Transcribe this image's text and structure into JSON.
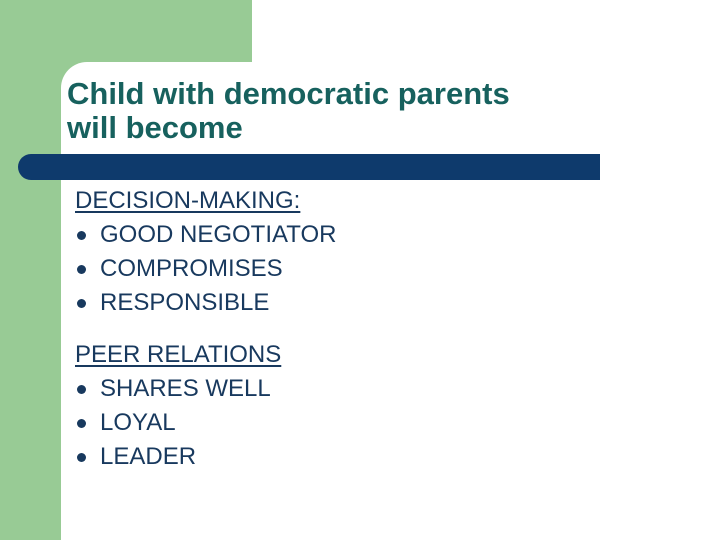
{
  "slide": {
    "title": {
      "line1": "Child with democratic parents",
      "line2": "will become"
    },
    "sections": [
      {
        "heading": "DECISION-MAKING:",
        "items": [
          "GOOD NEGOTIATOR",
          "COMPROMISES",
          "RESPONSIBLE"
        ]
      },
      {
        "heading": "PEER RELATIONS",
        "items": [
          "SHARES WELL",
          "LOYAL",
          "LEADER"
        ]
      }
    ],
    "colors": {
      "accent_green": "#98CB95",
      "bar_navy": "#0E3A6C",
      "title_teal": "#17615E",
      "body_navy": "#18395E",
      "background": "#ffffff"
    }
  }
}
